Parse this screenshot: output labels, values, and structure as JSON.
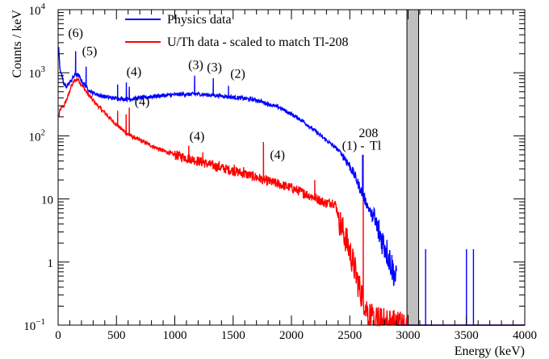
{
  "chart_data": {
    "type": "line",
    "xlabel": "Energy (keV)",
    "ylabel": "Counts / keV",
    "xlim": [
      0,
      4000
    ],
    "ylim": [
      0.1,
      10000
    ],
    "yscale": "log",
    "grid": false,
    "legend_position": "top-center",
    "x_ticks": [
      "0",
      "500",
      "1000",
      "1500",
      "2000",
      "2500",
      "3000",
      "3500",
      "4000"
    ],
    "y_ticks": [
      {
        "base": "10",
        "exp": "4"
      },
      {
        "base": "10",
        "exp": "3"
      },
      {
        "base": "10",
        "exp": "2"
      },
      {
        "base": "10",
        "exp": ""
      },
      {
        "base": "1",
        "exp": ""
      },
      {
        "base": "10",
        "exp": "−1"
      }
    ],
    "shaded_band": {
      "x0": 2990,
      "x1": 3090,
      "color": "#c0c0c0"
    },
    "series": [
      {
        "name": "Physics data",
        "color": "#0000ff",
        "x": [
          5,
          15,
          30,
          50,
          70,
          100,
          130,
          150,
          175,
          200,
          240,
          280,
          350,
          450,
          600,
          800,
          1000,
          1200,
          1400,
          1600,
          1700,
          1800,
          1900,
          2000,
          2100,
          2200,
          2300,
          2400,
          2450,
          2500,
          2550,
          2600,
          2650,
          2700,
          2750,
          2800,
          2850,
          2900
        ],
        "y": [
          2500,
          1200,
          900,
          650,
          600,
          700,
          850,
          950,
          900,
          750,
          600,
          500,
          440,
          400,
          380,
          420,
          450,
          460,
          430,
          390,
          370,
          320,
          280,
          220,
          170,
          120,
          85,
          60,
          47,
          33,
          22,
          13,
          8,
          5,
          3,
          1.8,
          1,
          0.5
        ],
        "peaks": [
          {
            "x": 150,
            "y": 2200
          },
          {
            "x": 240,
            "y": 1250
          },
          {
            "x": 510,
            "y": 650
          },
          {
            "x": 585,
            "y": 700
          },
          {
            "x": 610,
            "y": 600
          },
          {
            "x": 1170,
            "y": 900
          },
          {
            "x": 1330,
            "y": 820
          },
          {
            "x": 1460,
            "y": 620
          },
          {
            "x": 2610,
            "y": 50
          }
        ],
        "outliers": [
          {
            "x": 3150,
            "y": 1.6
          },
          {
            "x": 3500,
            "y": 1.6
          },
          {
            "x": 3560,
            "y": 1.6
          }
        ]
      },
      {
        "name": "U/Th data - scaled to match Tl-208",
        "color": "#ff0000",
        "x": [
          5,
          15,
          30,
          50,
          80,
          110,
          140,
          170,
          200,
          260,
          320,
          400,
          500,
          600,
          700,
          800,
          900,
          1000,
          1100,
          1200,
          1300,
          1400,
          1500,
          1600,
          1700,
          1800,
          1900,
          2000,
          2100,
          2200,
          2300,
          2350,
          2380,
          2420,
          2460,
          2500,
          2540,
          2580,
          2620,
          2660,
          2700,
          2800,
          3000
        ],
        "y": [
          200,
          250,
          280,
          300,
          400,
          600,
          750,
          800,
          650,
          450,
          330,
          230,
          150,
          105,
          85,
          70,
          58,
          50,
          45,
          40,
          35,
          31,
          28,
          25,
          22,
          19,
          17,
          15,
          12.5,
          10.5,
          8.5,
          9,
          8,
          4,
          2.5,
          1.5,
          0.8,
          0.4,
          0.25,
          0.15,
          0.12,
          0.11,
          0.1
        ],
        "peaks": [
          {
            "x": 510,
            "y": 250
          },
          {
            "x": 583,
            "y": 220
          },
          {
            "x": 610,
            "y": 280
          },
          {
            "x": 1120,
            "y": 70
          },
          {
            "x": 1240,
            "y": 55
          },
          {
            "x": 1380,
            "y": 40
          },
          {
            "x": 1510,
            "y": 35
          },
          {
            "x": 1590,
            "y": 32
          },
          {
            "x": 1760,
            "y": 80
          },
          {
            "x": 2110,
            "y": 14
          },
          {
            "x": 2200,
            "y": 20
          },
          {
            "x": 2615,
            "y": 50
          }
        ]
      }
    ],
    "annotations": [
      {
        "text": "(6)",
        "x": 150,
        "y": 3700
      },
      {
        "text": "(5)",
        "x": 270,
        "y": 1900
      },
      {
        "text": "(4)",
        "x": 650,
        "y": 900
      },
      {
        "text": "(3)",
        "x": 1180,
        "y": 1150
      },
      {
        "text": "(3)",
        "x": 1340,
        "y": 1050
      },
      {
        "text": "(2)",
        "x": 1540,
        "y": 830
      },
      {
        "text": "(4)",
        "x": 720,
        "y": 300
      },
      {
        "text": "(4)",
        "x": 1190,
        "y": 85
      },
      {
        "text": "(4)",
        "x": 1880,
        "y": 43
      },
      {
        "text": "(1) -",
        "x": 2530,
        "y": 60
      },
      {
        "text": "208",
        "x": 2660,
        "y": 95,
        "sup": true
      },
      {
        "text": "Tl",
        "x": 2720,
        "y": 60
      }
    ]
  }
}
